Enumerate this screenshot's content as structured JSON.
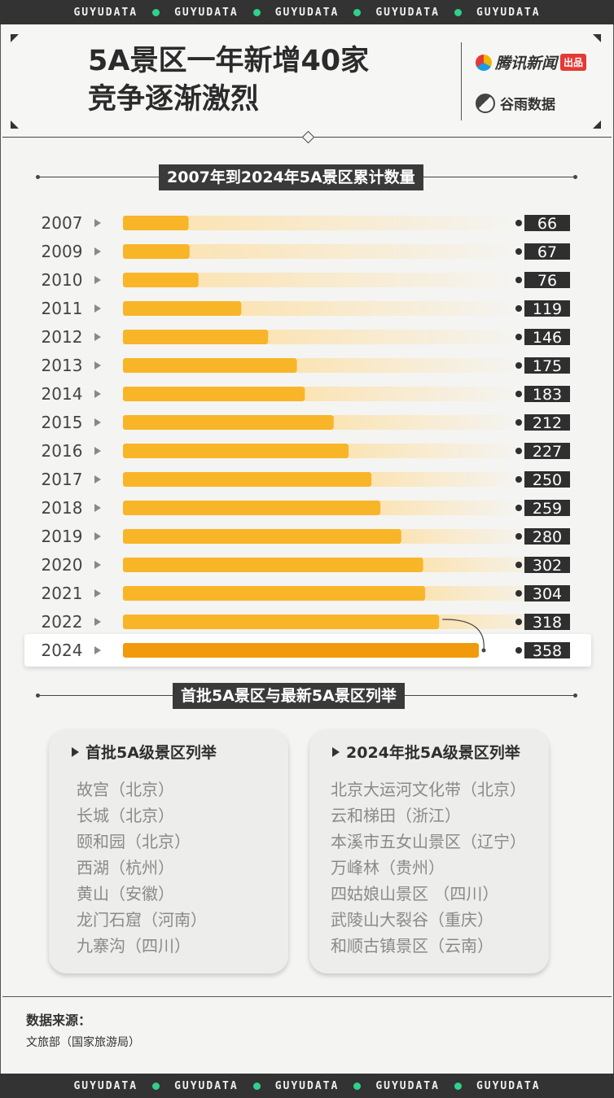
{
  "banner": {
    "text": "GUYUDATA",
    "repeat": 5,
    "dot_color": "#2fd18c"
  },
  "header": {
    "title_line1": "5A景区一年新增40家",
    "title_line2": "竞争逐渐激烈",
    "brand1_name": "腾讯新闻",
    "brand1_tag": "出品",
    "brand2_name": "谷雨数据"
  },
  "section1": {
    "title": "2007年到2024年5A景区累计数量"
  },
  "chart_data": {
    "type": "bar",
    "orientation": "horizontal",
    "title": "2007年到2024年5A景区累计数量",
    "categories": [
      "2007",
      "2009",
      "2010",
      "2011",
      "2012",
      "2013",
      "2014",
      "2015",
      "2016",
      "2017",
      "2018",
      "2019",
      "2020",
      "2021",
      "2022",
      "2024"
    ],
    "values": [
      66,
      67,
      76,
      119,
      146,
      175,
      183,
      212,
      227,
      250,
      259,
      280,
      302,
      304,
      318,
      358
    ],
    "highlight": "2024",
    "colors": {
      "bar": "#f9b528",
      "highlight": "#f09a0c",
      "label_bg": "#2f2f2f",
      "label_text": "#ffffff",
      "fade": "#fbe4b5"
    }
  },
  "section2": {
    "title": "首批5A景区与最新5A景区列举"
  },
  "cards": [
    {
      "title": "首批5A级景区列举",
      "items": [
        "故宫（北京）",
        "长城（北京）",
        "颐和园（北京）",
        "西湖（杭州）",
        "黄山（安徽）",
        "龙门石窟（河南）",
        "九寨沟（四川）"
      ]
    },
    {
      "title": "2024年批5A级景区列举",
      "items": [
        "北京大运河文化带（北京）",
        "云和梯田（浙江）",
        "本溪市五女山景区（辽宁）",
        "万峰林（贵州）",
        "四姑娘山景区 （四川）",
        "武陵山大裂谷（重庆）",
        "和顺古镇景区（云南）"
      ]
    }
  ],
  "source": {
    "label": "数据来源：",
    "text": "文旅部（国家旅游局）"
  }
}
